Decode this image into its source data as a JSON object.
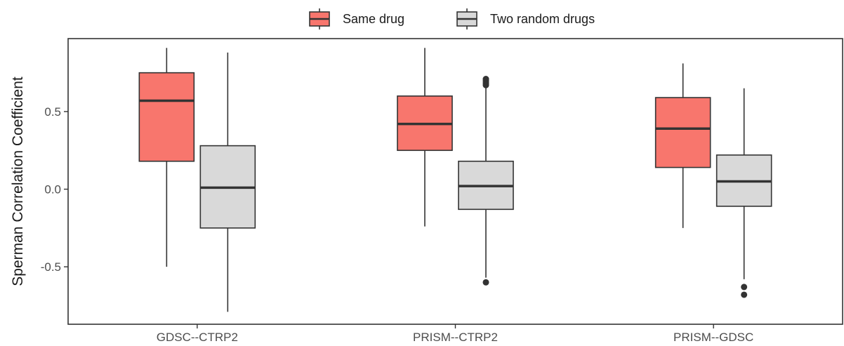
{
  "chart_data": {
    "type": "boxplot",
    "title": "",
    "xlabel": "",
    "ylabel": "Sperman Correlation Coefficient",
    "ylim": [
      -0.87,
      0.97
    ],
    "yticks": [
      -0.5,
      0.0,
      0.5
    ],
    "ytick_labels": [
      "-0.5",
      "0.0",
      "0.5"
    ],
    "categories": [
      "GDSC--CTRP2",
      "PRISM--CTRP2",
      "PRISM--GDSC"
    ],
    "legend_position": "top",
    "grid": false,
    "series": [
      {
        "name": "Same drug",
        "color": "#f8766d",
        "boxes": [
          {
            "whisker_low": -0.5,
            "q1": 0.18,
            "median": 0.57,
            "q3": 0.75,
            "whisker_high": 0.91,
            "outliers": []
          },
          {
            "whisker_low": -0.24,
            "q1": 0.25,
            "median": 0.42,
            "q3": 0.6,
            "whisker_high": 0.91,
            "outliers": []
          },
          {
            "whisker_low": -0.25,
            "q1": 0.14,
            "median": 0.39,
            "q3": 0.59,
            "whisker_high": 0.81,
            "outliers": []
          }
        ]
      },
      {
        "name": "Two random drugs",
        "color": "#d9d9d9",
        "boxes": [
          {
            "whisker_low": -0.79,
            "q1": -0.25,
            "median": 0.01,
            "q3": 0.28,
            "whisker_high": 0.88,
            "outliers": []
          },
          {
            "whisker_low": -0.57,
            "q1": -0.13,
            "median": 0.02,
            "q3": 0.18,
            "whisker_high": 0.66,
            "outliers": [
              -0.6,
              0.67,
              0.68,
              0.69,
              0.7,
              0.71
            ]
          },
          {
            "whisker_low": -0.58,
            "q1": -0.11,
            "median": 0.05,
            "q3": 0.22,
            "whisker_high": 0.65,
            "outliers": [
              -0.63,
              -0.68
            ]
          }
        ]
      }
    ]
  }
}
